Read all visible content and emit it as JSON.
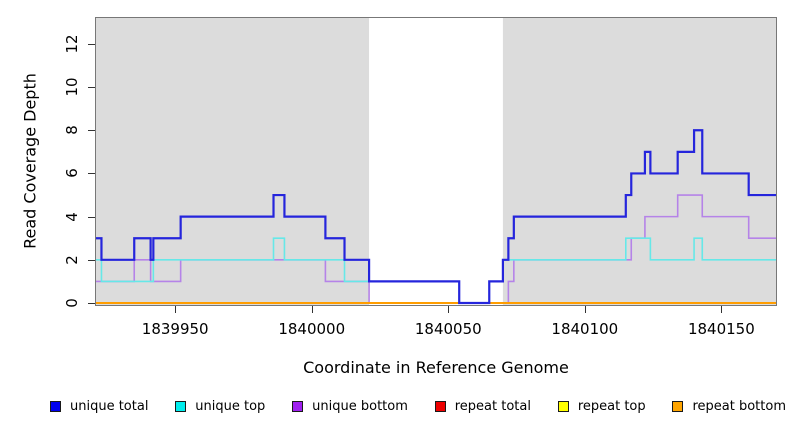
{
  "figure": {
    "x_axis_title": "Coordinate in Reference Genome",
    "y_axis_title": "Read Coverage Depth"
  },
  "chart_data": {
    "type": "line",
    "subtype": "step-coverage-plot",
    "title": "",
    "xlabel": "Coordinate in Reference Genome",
    "ylabel": "Read Coverage Depth",
    "xlim": [
      1839921,
      1840170
    ],
    "ylim": [
      0,
      13.2
    ],
    "grid": false,
    "legend_position": "bottom",
    "xticks": [
      1839950,
      1840000,
      1840050,
      1840100,
      1840150
    ],
    "yticks": [
      0,
      2,
      4,
      6,
      8,
      10,
      12
    ],
    "colors": {
      "plot_background_shaded": "#DCDCDC",
      "plot_background_band": "#FFFFFF",
      "axis": "#333333",
      "box_border": "#777777"
    },
    "background_regions": [
      {
        "kind": "shaded",
        "from": 1839921,
        "to": 1840021,
        "color": "#DCDCDC"
      },
      {
        "kind": "unshaded-band",
        "from": 1840021,
        "to": 1840070,
        "color": "#FFFFFF"
      },
      {
        "kind": "shaded",
        "from": 1840070,
        "to": 1840170,
        "color": "#DCDCDC"
      }
    ],
    "series": [
      {
        "name": "unique total",
        "legend_color": "#0000EE",
        "line_color": "#2525DC",
        "line_width": 2.2,
        "z": 6,
        "segments": [
          [
            1839921,
            1839923,
            3
          ],
          [
            1839923,
            1839935,
            2
          ],
          [
            1839935,
            1839941,
            3
          ],
          [
            1839941,
            1839942,
            2
          ],
          [
            1839942,
            1839952,
            3
          ],
          [
            1839952,
            1839986,
            4
          ],
          [
            1839986,
            1839990,
            5
          ],
          [
            1839990,
            1840005,
            4
          ],
          [
            1840005,
            1840012,
            3
          ],
          [
            1840012,
            1840021,
            2
          ],
          [
            1840021,
            1840054,
            1
          ],
          [
            1840054,
            1840065,
            0
          ],
          [
            1840065,
            1840070,
            1
          ],
          [
            1840070,
            1840072,
            2
          ],
          [
            1840072,
            1840074,
            3
          ],
          [
            1840074,
            1840115,
            4
          ],
          [
            1840115,
            1840117,
            5
          ],
          [
            1840117,
            1840122,
            6
          ],
          [
            1840122,
            1840124,
            7
          ],
          [
            1840124,
            1840134,
            6
          ],
          [
            1840134,
            1840140,
            7
          ],
          [
            1840140,
            1840143,
            8
          ],
          [
            1840143,
            1840160,
            6
          ],
          [
            1840160,
            1840170,
            5
          ]
        ]
      },
      {
        "name": "unique top",
        "legend_color": "#00EEEE",
        "line_color": "#66E8E8",
        "line_width": 1.6,
        "z": 3,
        "segments": [
          [
            1839921,
            1839923,
            2
          ],
          [
            1839923,
            1839942,
            1
          ],
          [
            1839942,
            1839986,
            2
          ],
          [
            1839986,
            1839990,
            3
          ],
          [
            1839990,
            1840012,
            2
          ],
          [
            1840012,
            1840054,
            1
          ],
          [
            1840054,
            1840065,
            0
          ],
          [
            1840065,
            1840070,
            1
          ],
          [
            1840070,
            1840115,
            2
          ],
          [
            1840115,
            1840124,
            3
          ],
          [
            1840124,
            1840140,
            2
          ],
          [
            1840140,
            1840143,
            3
          ],
          [
            1840143,
            1840170,
            2
          ]
        ]
      },
      {
        "name": "unique bottom",
        "legend_color": "#A020F0",
        "line_color": "#B583E8",
        "line_width": 1.6,
        "z": 2,
        "segments": [
          [
            1839921,
            1839935,
            1
          ],
          [
            1839935,
            1839941,
            2
          ],
          [
            1839941,
            1839952,
            1
          ],
          [
            1839952,
            1840005,
            2
          ],
          [
            1840005,
            1840021,
            1
          ],
          [
            1840021,
            1840072,
            0
          ],
          [
            1840072,
            1840074,
            1
          ],
          [
            1840074,
            1840117,
            2
          ],
          [
            1840117,
            1840122,
            3
          ],
          [
            1840122,
            1840134,
            4
          ],
          [
            1840134,
            1840143,
            5
          ],
          [
            1840143,
            1840160,
            4
          ],
          [
            1840160,
            1840170,
            3
          ]
        ]
      },
      {
        "name": "repeat total",
        "legend_color": "#EE0000",
        "line_color": "#D4617F",
        "line_width": 1.6,
        "z": 4,
        "segments": [
          [
            1839921,
            1840170,
            0
          ]
        ]
      },
      {
        "name": "repeat top",
        "legend_color": "#FFFF00",
        "line_color": "#FFFF00",
        "line_width": 1.6,
        "z": 1,
        "segments": [
          [
            1839921,
            1840170,
            0
          ]
        ]
      },
      {
        "name": "repeat bottom",
        "legend_color": "#FFA500",
        "line_color": "#FF9D00",
        "line_width": 2,
        "z": 5,
        "segments": [
          [
            1839921,
            1840021,
            0
          ],
          [
            1840070,
            1840170,
            0
          ]
        ]
      }
    ]
  },
  "legend": {
    "items": [
      {
        "label": "unique total",
        "color": "#0000EE"
      },
      {
        "label": "unique top",
        "color": "#00EEEE"
      },
      {
        "label": "unique bottom",
        "color": "#A020F0"
      },
      {
        "label": "repeat total",
        "color": "#EE0000"
      },
      {
        "label": "repeat top",
        "color": "#FFFF00"
      },
      {
        "label": "repeat bottom",
        "color": "#FFA500"
      }
    ]
  }
}
